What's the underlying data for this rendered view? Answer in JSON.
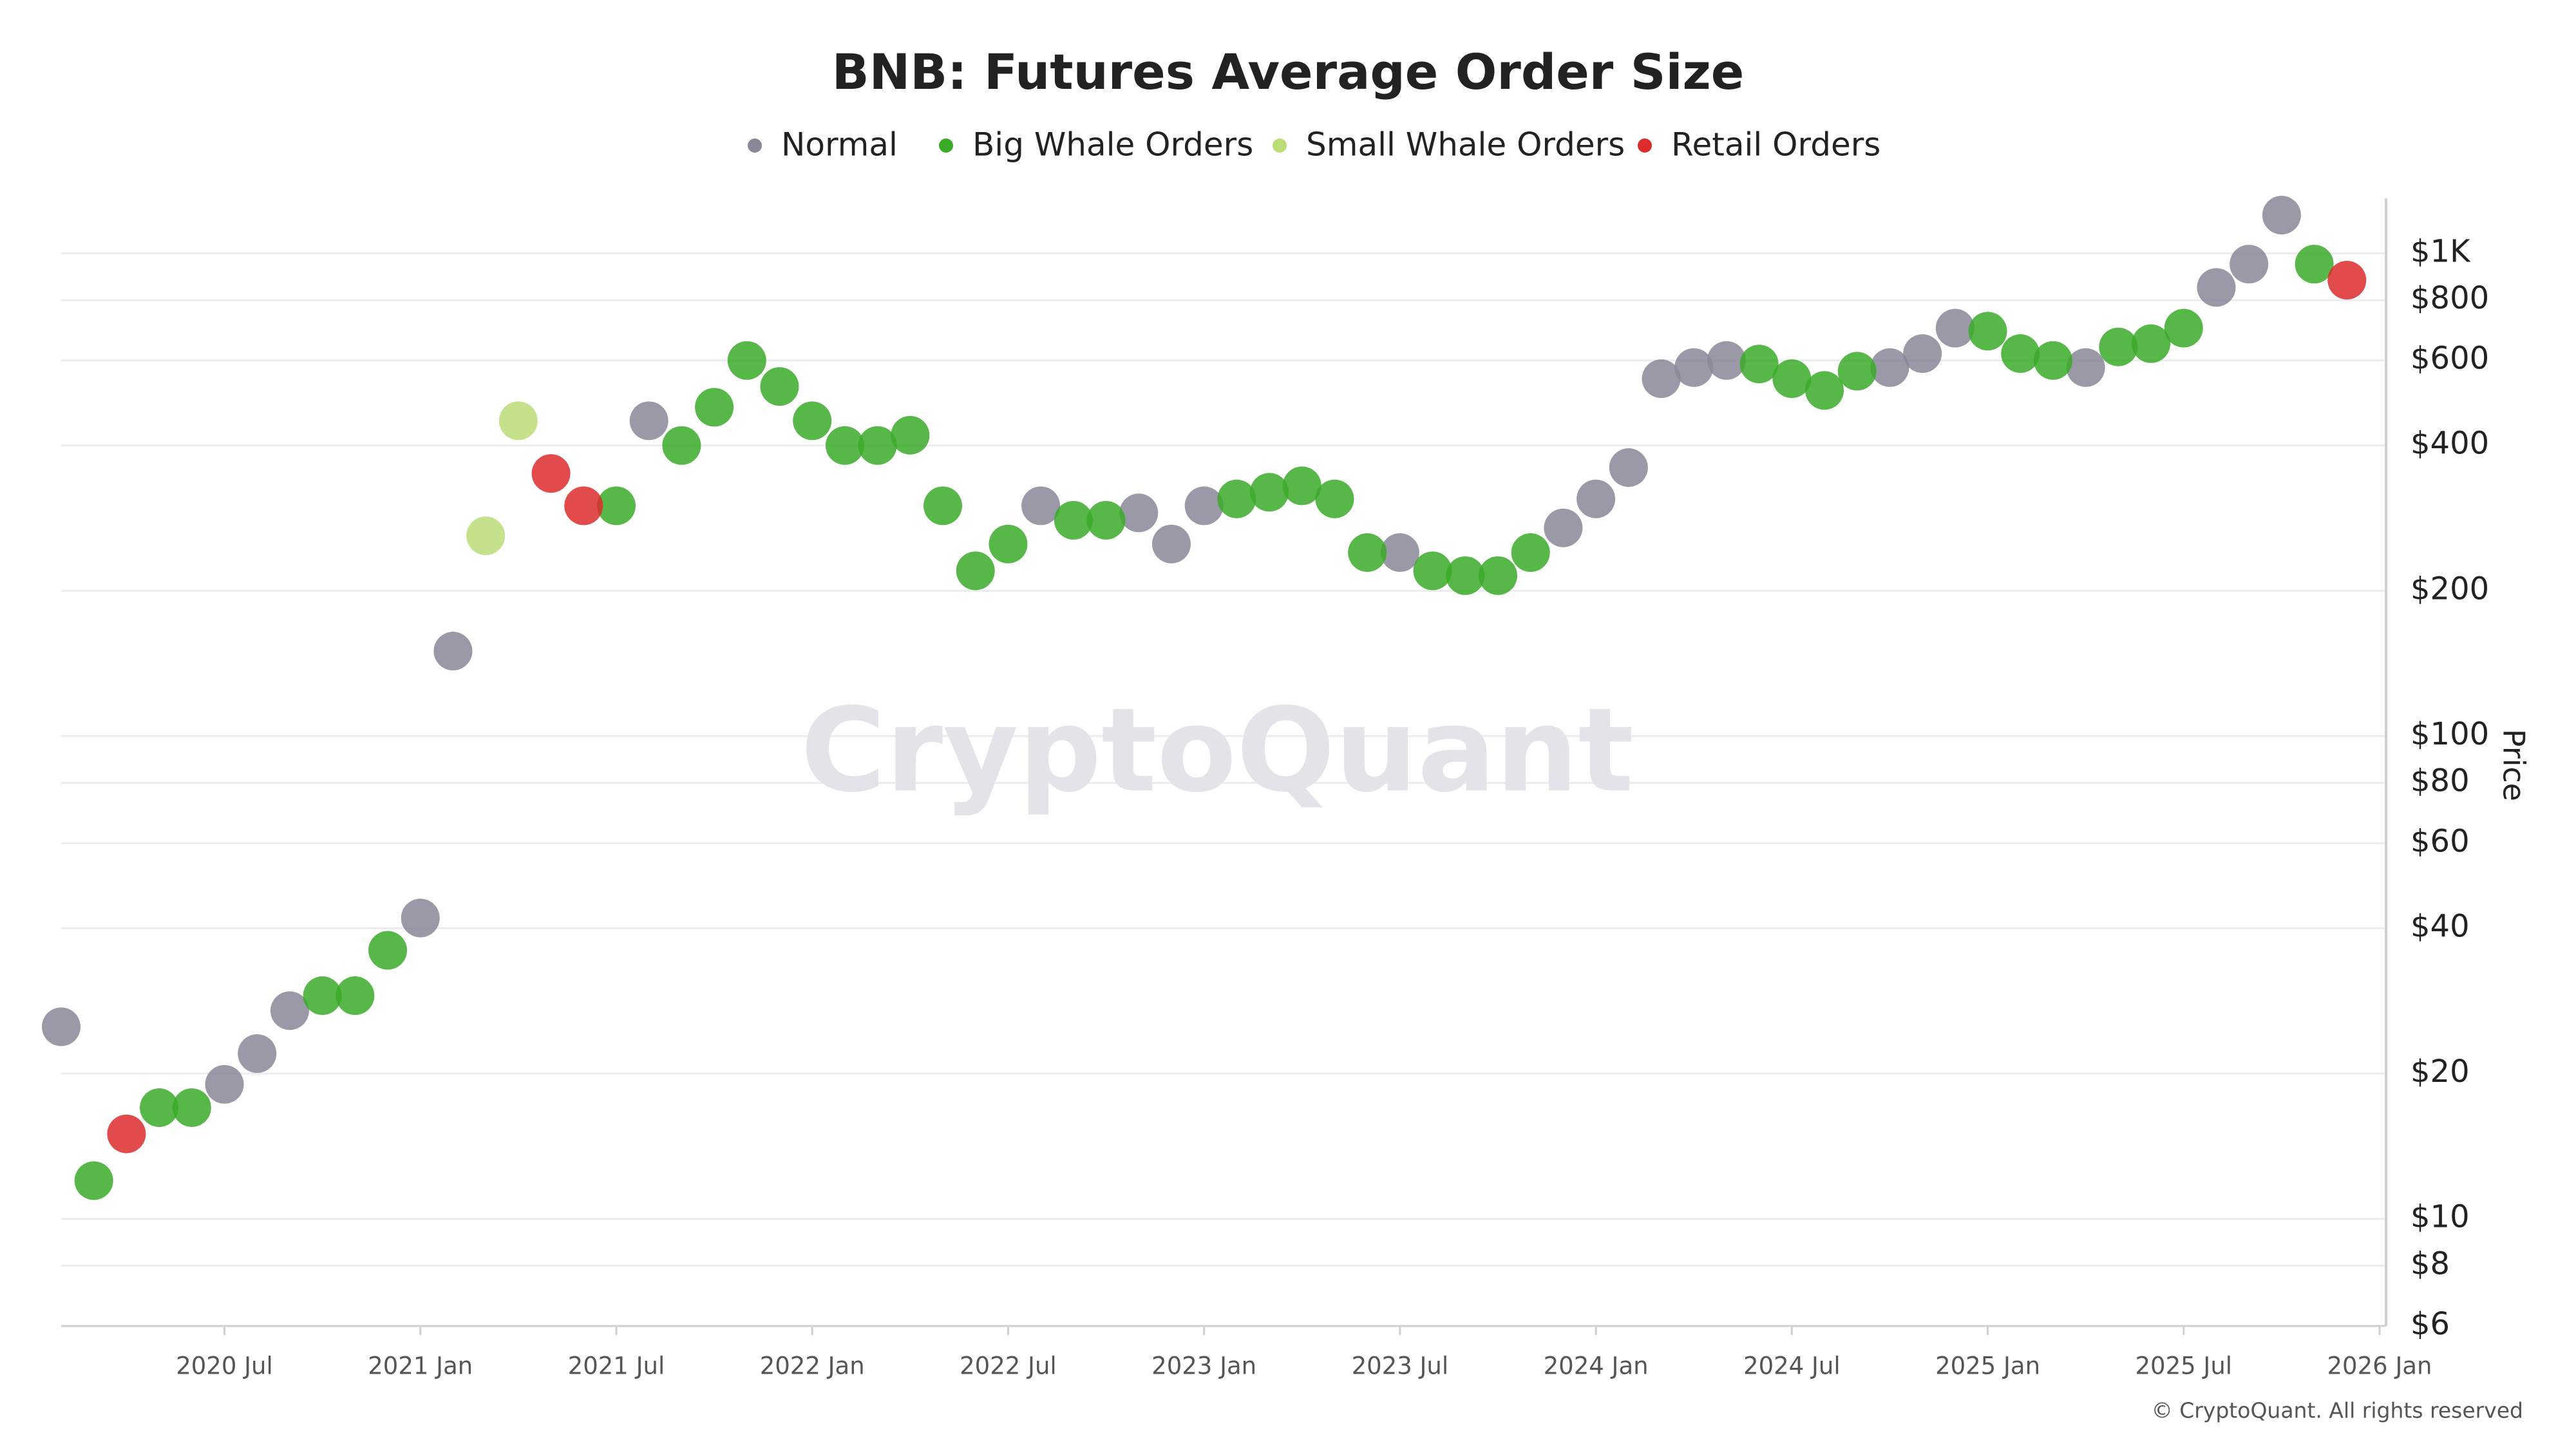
{
  "chart_data": {
    "type": "scatter",
    "title": "BNB: Futures Average Order Size",
    "watermark": "CryptoQuant",
    "footer": "© CryptoQuant. All rights reserved",
    "y_label": "Price",
    "log_y": true,
    "grid": true,
    "legend": "top",
    "xlim": [
      "2020-02",
      "2026-01"
    ],
    "xticks": [
      {
        "value": "2020-07",
        "label": "2020 Jul"
      },
      {
        "value": "2021-01",
        "label": "2021 Jan"
      },
      {
        "value": "2021-07",
        "label": "2021 Jul"
      },
      {
        "value": "2022-01",
        "label": "2022 Jan"
      },
      {
        "value": "2022-07",
        "label": "2022 Jul"
      },
      {
        "value": "2023-01",
        "label": "2023 Jan"
      },
      {
        "value": "2023-07",
        "label": "2023 Jul"
      },
      {
        "value": "2024-01",
        "label": "2024 Jan"
      },
      {
        "value": "2024-07",
        "label": "2024 Jul"
      },
      {
        "value": "2025-01",
        "label": "2025 Jan"
      },
      {
        "value": "2025-07",
        "label": "2025 Jul"
      },
      {
        "value": "2026-01",
        "label": "2026 Jan"
      }
    ],
    "ylim": [
      6,
      1300
    ],
    "yticks": [
      {
        "value": 6,
        "label": "$6"
      },
      {
        "value": 8,
        "label": "$8"
      },
      {
        "value": 10,
        "label": "$10"
      },
      {
        "value": 20,
        "label": "$20"
      },
      {
        "value": 40,
        "label": "$40"
      },
      {
        "value": 60,
        "label": "$60"
      },
      {
        "value": 80,
        "label": "$80"
      },
      {
        "value": 100,
        "label": "$100"
      },
      {
        "value": 200,
        "label": "$200"
      },
      {
        "value": 400,
        "label": "$400"
      },
      {
        "value": 600,
        "label": "$600"
      },
      {
        "value": 800,
        "label": "$800"
      },
      {
        "value": 1000,
        "label": "$1K"
      }
    ],
    "series": [
      {
        "name": "Normal",
        "color": "#8a8799",
        "x": [
          "2020-02",
          "2020-07",
          "2020-08",
          "2020-09",
          "2021-01",
          "2021-02",
          "2021-08",
          "2022-08",
          "2022-11",
          "2022-12",
          "2023-01",
          "2023-07",
          "2023-12",
          "2024-01",
          "2024-02",
          "2024-03",
          "2024-04",
          "2024-05",
          "2024-10",
          "2024-11",
          "2024-12",
          "2025-04",
          "2025-08",
          "2025-09",
          "2025-10"
        ],
        "values": [
          25,
          19,
          22,
          27,
          42,
          150,
          450,
          300,
          290,
          250,
          300,
          240,
          270,
          310,
          360,
          550,
          580,
          600,
          580,
          620,
          700,
          580,
          850,
          950,
          1200
        ]
      },
      {
        "name": "Big Whale Orders",
        "color": "#3aaa28",
        "x": [
          "2020-03",
          "2020-05",
          "2020-06",
          "2020-10",
          "2020-11",
          "2020-12",
          "2021-07",
          "2021-09",
          "2021-10",
          "2021-11",
          "2021-12",
          "2022-01",
          "2022-02",
          "2022-03",
          "2022-04",
          "2022-05",
          "2022-06",
          "2022-07",
          "2022-09",
          "2022-10",
          "2023-02",
          "2023-03",
          "2023-04",
          "2023-05",
          "2023-06",
          "2023-08",
          "2023-09",
          "2023-10",
          "2023-11",
          "2024-06",
          "2024-07",
          "2024-08",
          "2024-09",
          "2025-01",
          "2025-02",
          "2025-03",
          "2025-05",
          "2025-06",
          "2025-07",
          "2025-11"
        ],
        "values": [
          12,
          17,
          17,
          29,
          29,
          36,
          300,
          400,
          480,
          600,
          530,
          450,
          400,
          400,
          420,
          300,
          220,
          250,
          280,
          280,
          310,
          320,
          330,
          310,
          240,
          220,
          215,
          215,
          240,
          590,
          550,
          520,
          570,
          690,
          620,
          600,
          640,
          650,
          700,
          950
        ]
      },
      {
        "name": "Small Whale Orders",
        "color": "#bcdc78",
        "x": [
          "2021-03",
          "2021-04"
        ],
        "values": [
          260,
          450
        ]
      },
      {
        "name": "Retail Orders",
        "color": "#dd2c2c",
        "x": [
          "2020-04",
          "2021-05",
          "2021-06",
          "2025-12"
        ],
        "values": [
          15,
          350,
          300,
          880
        ]
      }
    ]
  }
}
